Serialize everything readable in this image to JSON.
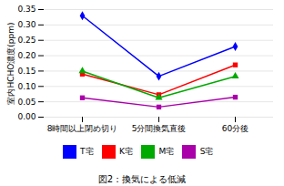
{
  "chart_data": {
    "type": "line",
    "caption": "図2：換気による低減",
    "ylabel": "室内HCHO濃度(ppm)",
    "categories": [
      "8時間以上閉め切り",
      "5分間換気直後",
      "60分後"
    ],
    "series": [
      {
        "name": "T宅",
        "color": "#0000FF",
        "marker": "diamond",
        "values": [
          0.33,
          0.133,
          0.23
        ]
      },
      {
        "name": "K宅",
        "color": "#FF0000",
        "marker": "square",
        "values": [
          0.14,
          0.073,
          0.17
        ]
      },
      {
        "name": "M宅",
        "color": "#00AA00",
        "marker": "triangle",
        "values": [
          0.15,
          0.063,
          0.133
        ]
      },
      {
        "name": "S宅",
        "color": "#AA00AA",
        "marker": "square",
        "values": [
          0.063,
          0.033,
          0.065
        ]
      }
    ],
    "ylim": [
      0,
      0.35
    ],
    "yticks": [
      {
        "value": 0,
        "label": "0.00"
      },
      0.05,
      {
        "value": 0.1,
        "label": "0.10"
      },
      0.15,
      {
        "value": 0.2,
        "label": "0.20"
      },
      0.25,
      {
        "value": 0.3,
        "label": "0.30"
      },
      0.35
    ],
    "grid": true,
    "legend": "bottom"
  }
}
